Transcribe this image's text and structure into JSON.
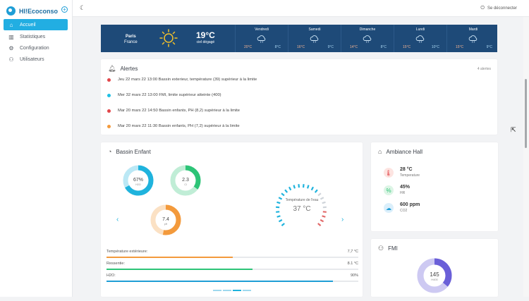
{
  "app": {
    "name": "HI!Ecoconso",
    "logout": "Se déconnecter"
  },
  "nav": [
    {
      "label": "Accueil",
      "icon": "home-icon"
    },
    {
      "label": "Statistiques",
      "icon": "chart-bars-icon"
    },
    {
      "label": "Configuration",
      "icon": "gear-icon"
    },
    {
      "label": "Utilisateurs",
      "icon": "users-icon"
    }
  ],
  "weather": {
    "city": "Paris",
    "country": "France",
    "temp": "19°C",
    "desc": "ciel dégagé",
    "days": [
      {
        "name": "Vendredi",
        "lo": "20°C",
        "hi": "8°C"
      },
      {
        "name": "Samedi",
        "lo": "16°C",
        "hi": "9°C"
      },
      {
        "name": "Dimanche",
        "lo": "14°C",
        "hi": "8°C"
      },
      {
        "name": "Lundi",
        "lo": "15°C",
        "hi": "10°C"
      },
      {
        "name": "Mardi",
        "lo": "15°C",
        "hi": "9°C"
      }
    ]
  },
  "alerts": {
    "title": "Alertes",
    "count": "4 alertes",
    "items": [
      {
        "text": "Jeu 22 mars 22 13:00 Bassin exterieur, température (39) supérieur à la limite",
        "color": "#e2474b"
      },
      {
        "text": "Mer 32 mars 22 13:00 FMI, limite supérieur atteinte (400)",
        "color": "#1fc0e4"
      },
      {
        "text": "Mar 20 mars 22 14:50 Bassin enfants, PH (8,2) supérieur à la limite",
        "color": "#e2474b"
      },
      {
        "text": "Mar 20 mars 22 11:30 Bassin enfants, PH (7,2) supérieur à la limite",
        "color": "#f39a3c"
      }
    ]
  },
  "bassin": {
    "title": "Bassin Enfant",
    "gauges": [
      {
        "value": "67%",
        "label": "H2O",
        "color": "#1fb3dd",
        "pct": 0.67
      },
      {
        "value": "2.3",
        "label": "Cl",
        "color": "#2dc477",
        "pct": 0.35
      },
      {
        "value": "7.4",
        "label": "pH",
        "color": "#f39a3c",
        "pct": 0.53
      }
    ],
    "water_label": "Température de l'eau",
    "water_temp": "37 °C",
    "bars": [
      {
        "label": "Température extérieure:",
        "value": "7,7 °C",
        "color": "#f39a3c",
        "pct": 0.5
      },
      {
        "label": "Ressentie:",
        "value": "8.1 °C",
        "color": "#2dc477",
        "pct": 0.58
      },
      {
        "label": "H2O:",
        "value": "90%",
        "color": "#1f9ed6",
        "pct": 0.9
      }
    ]
  },
  "ambiance": {
    "title": "Ambiance Hall",
    "items": [
      {
        "value": "28 °C",
        "label": "Temperature",
        "icon": "thermometer-icon",
        "bg": "#fde4e1",
        "fg": "#e2474b"
      },
      {
        "value": "45%",
        "label": "HR",
        "icon": "percent-icon",
        "bg": "#ddf5e6",
        "fg": "#2dc477"
      },
      {
        "value": "600 ppm",
        "label": "CO2",
        "icon": "cloud-icon",
        "bg": "#dbeffb",
        "fg": "#1f9ed6"
      }
    ]
  },
  "fmi": {
    "title": "FMI",
    "value": "145",
    "label": "H400",
    "pct": 0.36,
    "color": "#6a5fd8"
  }
}
